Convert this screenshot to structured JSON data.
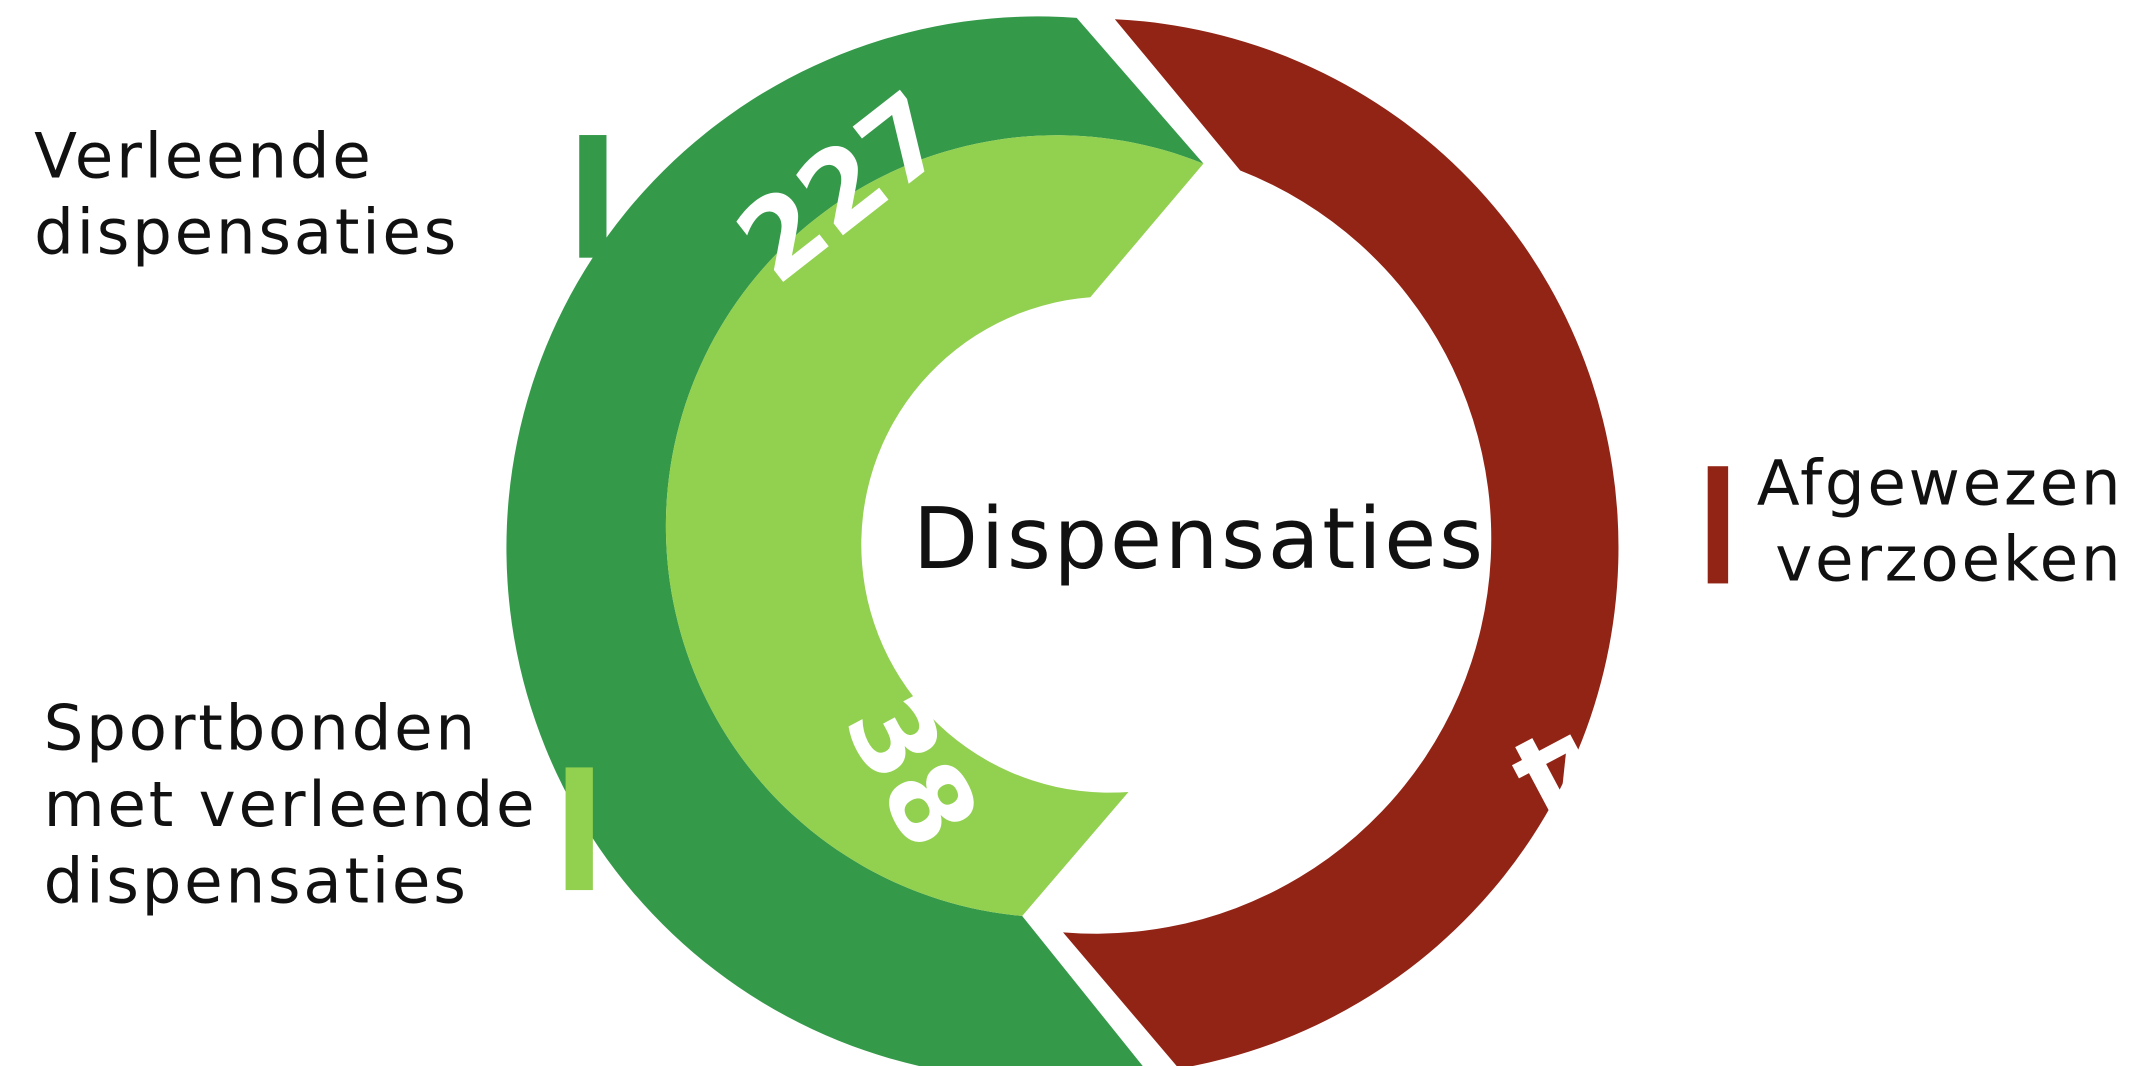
{
  "title": "Dispensaties",
  "items": [
    {
      "label": [
        "Verleende",
        "dispensaties"
      ],
      "value": "227",
      "color": "#35994a"
    },
    {
      "label": [
        "Sportbonden",
        "met verleende",
        "dispensaties"
      ],
      "value": "38",
      "color": "#92d050"
    },
    {
      "label": [
        "Afgewezen",
        "verzoeken"
      ],
      "value": "4",
      "color": "#922416"
    }
  ]
}
